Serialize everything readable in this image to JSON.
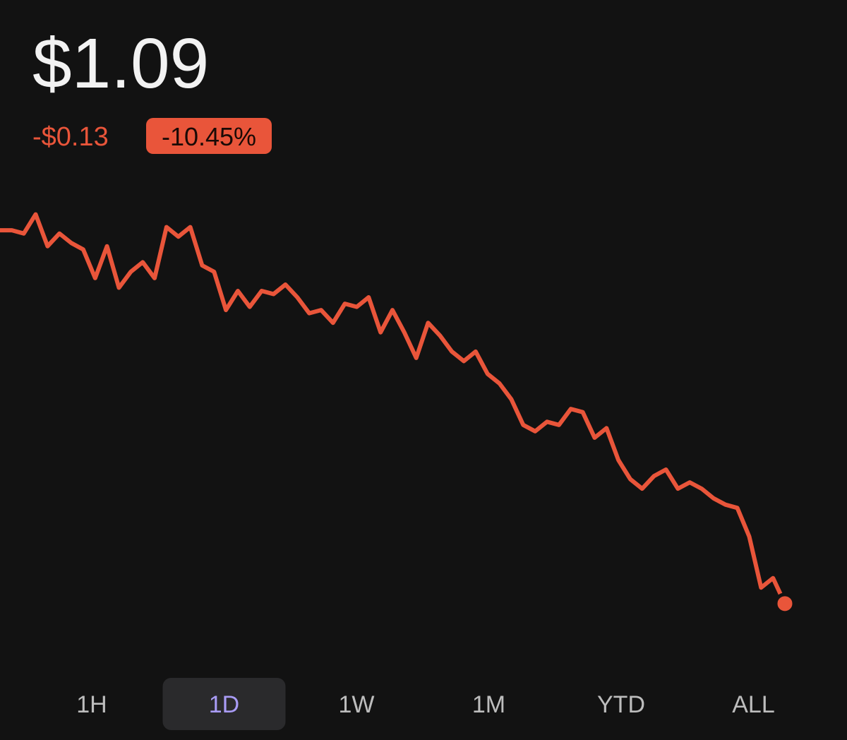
{
  "header": {
    "price": "$1.09",
    "change": "-$0.13",
    "change_percent": "-10.45%"
  },
  "chart_data": {
    "type": "line",
    "color": "#e9553a",
    "ylim": [
      1.08,
      1.215
    ],
    "values": [
      1.207,
      1.207,
      1.206,
      1.212,
      1.202,
      1.206,
      1.203,
      1.201,
      1.192,
      1.202,
      1.189,
      1.194,
      1.197,
      1.192,
      1.208,
      1.205,
      1.208,
      1.196,
      1.194,
      1.182,
      1.188,
      1.183,
      1.188,
      1.187,
      1.19,
      1.186,
      1.181,
      1.182,
      1.178,
      1.184,
      1.183,
      1.186,
      1.175,
      1.182,
      1.175,
      1.167,
      1.178,
      1.174,
      1.169,
      1.166,
      1.169,
      1.162,
      1.159,
      1.154,
      1.146,
      1.144,
      1.147,
      1.146,
      1.151,
      1.15,
      1.142,
      1.145,
      1.135,
      1.129,
      1.126,
      1.13,
      1.132,
      1.126,
      1.128,
      1.126,
      1.123,
      1.121,
      1.12,
      1.111,
      1.095,
      1.098,
      1.09
    ]
  },
  "ranges": [
    "1H",
    "1D",
    "1W",
    "1M",
    "YTD",
    "ALL"
  ],
  "active_range": 1
}
